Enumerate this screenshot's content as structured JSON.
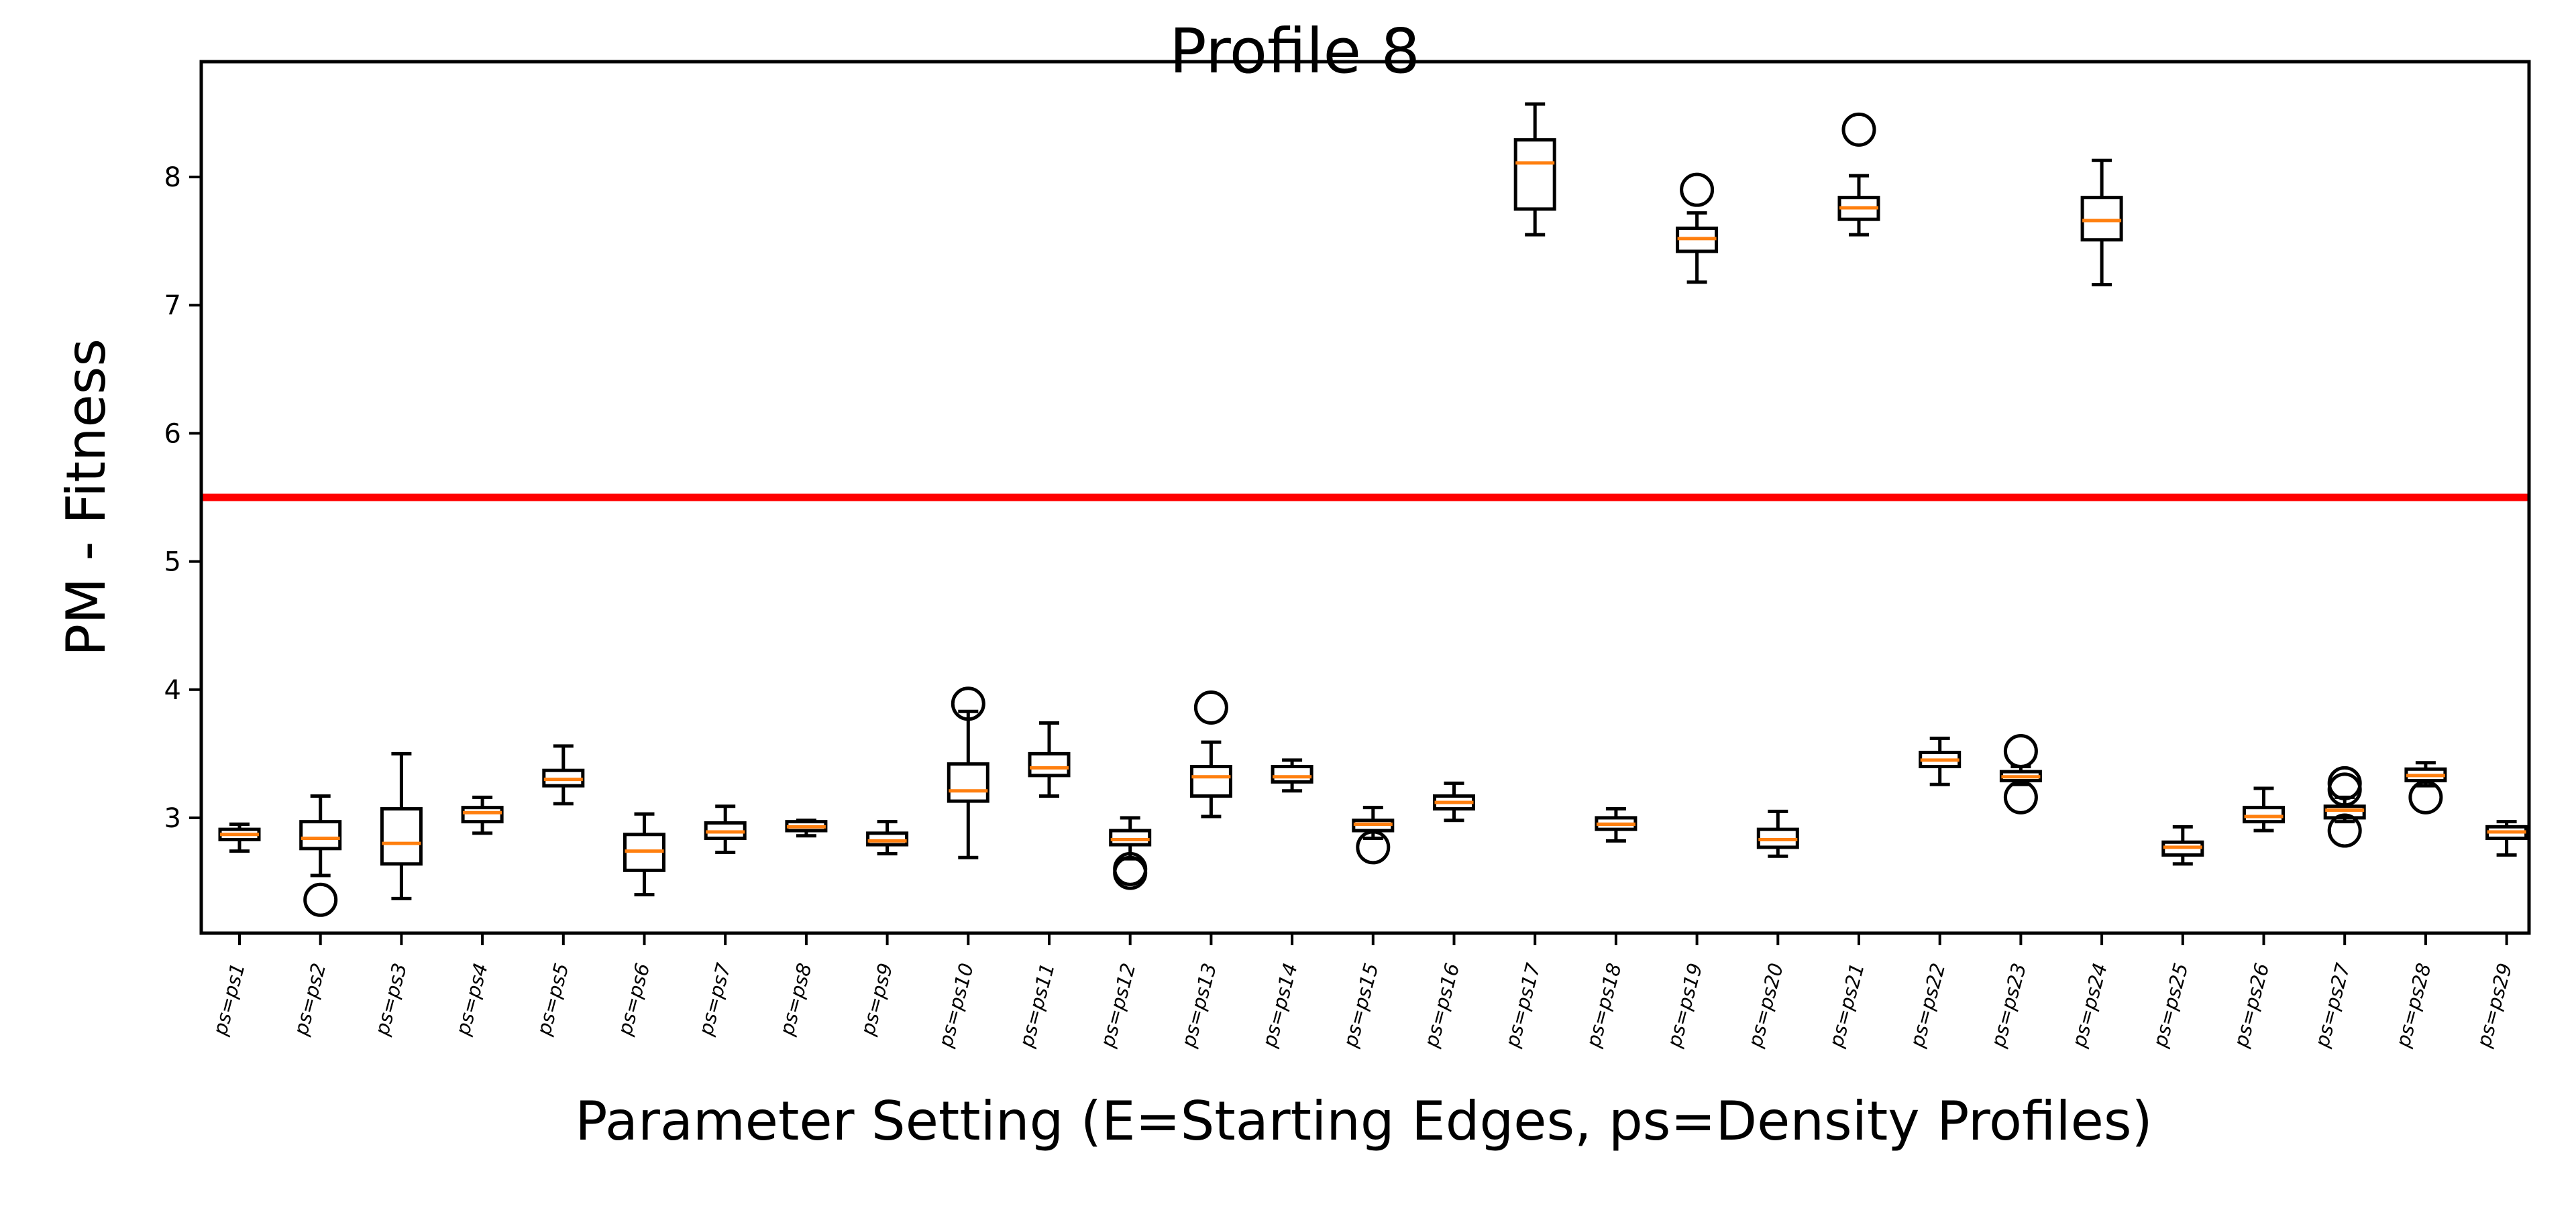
{
  "chart_data": {
    "type": "box",
    "title": "Profile 8",
    "xlabel": "Parameter Setting (E=Starting Edges, ps=Density Profiles)",
    "ylabel": "PM - Fitness",
    "ylim": [
      2.1,
      8.9
    ],
    "yticks": [
      3,
      4,
      5,
      6,
      7,
      8
    ],
    "grid": false,
    "reference_line": {
      "y": 5.5,
      "color": "#ff0000"
    },
    "colors": {
      "box": "#000000",
      "median": "#ff7f0e",
      "reference": "#ff0000"
    },
    "categories": [
      "ps=ps1",
      "ps=ps2",
      "ps=ps3",
      "ps=ps4",
      "ps=ps5",
      "ps=ps6",
      "ps=ps7",
      "ps=ps8",
      "ps=ps9",
      "ps=ps10",
      "ps=ps11",
      "ps=ps12",
      "ps=ps13",
      "ps=ps14",
      "ps=ps15",
      "ps=ps16",
      "ps=ps17",
      "ps=ps18",
      "ps=ps19",
      "ps=ps20",
      "ps=ps21",
      "ps=ps22",
      "ps=ps23",
      "ps=ps24",
      "ps=ps25",
      "ps=ps26",
      "ps=ps27",
      "ps=ps28",
      "ps=ps29"
    ],
    "boxes": [
      {
        "min": 2.74,
        "q1": 2.83,
        "median": 2.87,
        "q3": 2.91,
        "max": 2.95,
        "outliers": []
      },
      {
        "min": 2.55,
        "q1": 2.76,
        "median": 2.84,
        "q3": 2.97,
        "max": 3.17,
        "outliers": [
          2.36
        ]
      },
      {
        "min": 2.37,
        "q1": 2.64,
        "median": 2.8,
        "q3": 3.07,
        "max": 3.5,
        "outliers": []
      },
      {
        "min": 2.88,
        "q1": 2.97,
        "median": 3.04,
        "q3": 3.08,
        "max": 3.16,
        "outliers": []
      },
      {
        "min": 3.11,
        "q1": 3.25,
        "median": 3.3,
        "q3": 3.37,
        "max": 3.56,
        "outliers": []
      },
      {
        "min": 2.4,
        "q1": 2.59,
        "median": 2.74,
        "q3": 2.87,
        "max": 3.03,
        "outliers": []
      },
      {
        "min": 2.73,
        "q1": 2.84,
        "median": 2.89,
        "q3": 2.96,
        "max": 3.09,
        "outliers": []
      },
      {
        "min": 2.86,
        "q1": 2.9,
        "median": 2.93,
        "q3": 2.97,
        "max": 2.98,
        "outliers": []
      },
      {
        "min": 2.72,
        "q1": 2.79,
        "median": 2.82,
        "q3": 2.88,
        "max": 2.97,
        "outliers": []
      },
      {
        "min": 2.69,
        "q1": 3.13,
        "median": 3.21,
        "q3": 3.42,
        "max": 3.83,
        "outliers": [
          3.89
        ]
      },
      {
        "min": 3.17,
        "q1": 3.33,
        "median": 3.39,
        "q3": 3.5,
        "max": 3.74,
        "outliers": []
      },
      {
        "min": 2.68,
        "q1": 2.79,
        "median": 2.83,
        "q3": 2.9,
        "max": 3.0,
        "outliers": [
          2.6,
          2.57
        ]
      },
      {
        "min": 3.01,
        "q1": 3.17,
        "median": 3.32,
        "q3": 3.4,
        "max": 3.59,
        "outliers": [
          3.86
        ]
      },
      {
        "min": 3.21,
        "q1": 3.28,
        "median": 3.32,
        "q3": 3.4,
        "max": 3.45,
        "outliers": []
      },
      {
        "min": 2.84,
        "q1": 2.9,
        "median": 2.95,
        "q3": 2.98,
        "max": 3.08,
        "outliers": [
          2.77
        ]
      },
      {
        "min": 2.98,
        "q1": 3.07,
        "median": 3.12,
        "q3": 3.17,
        "max": 3.27,
        "outliers": []
      },
      {
        "min": 7.55,
        "q1": 7.75,
        "median": 8.11,
        "q3": 8.29,
        "max": 8.57,
        "outliers": []
      },
      {
        "min": 2.82,
        "q1": 2.91,
        "median": 2.95,
        "q3": 3.0,
        "max": 3.07,
        "outliers": []
      },
      {
        "min": 7.18,
        "q1": 7.42,
        "median": 7.52,
        "q3": 7.6,
        "max": 7.72,
        "outliers": [
          7.9
        ]
      },
      {
        "min": 2.7,
        "q1": 2.77,
        "median": 2.83,
        "q3": 2.91,
        "max": 3.05,
        "outliers": []
      },
      {
        "min": 7.55,
        "q1": 7.67,
        "median": 7.76,
        "q3": 7.84,
        "max": 8.01,
        "outliers": [
          8.37
        ]
      },
      {
        "min": 3.26,
        "q1": 3.4,
        "median": 3.45,
        "q3": 3.51,
        "max": 3.62,
        "outliers": []
      },
      {
        "min": 3.26,
        "q1": 3.29,
        "median": 3.32,
        "q3": 3.36,
        "max": 3.4,
        "outliers": [
          3.52,
          3.16
        ]
      },
      {
        "min": 7.16,
        "q1": 7.51,
        "median": 7.66,
        "q3": 7.84,
        "max": 8.13,
        "outliers": []
      },
      {
        "min": 2.64,
        "q1": 2.71,
        "median": 2.77,
        "q3": 2.81,
        "max": 2.93,
        "outliers": []
      },
      {
        "min": 2.9,
        "q1": 2.97,
        "median": 3.01,
        "q3": 3.08,
        "max": 3.23,
        "outliers": []
      },
      {
        "min": 2.97,
        "q1": 3.0,
        "median": 3.06,
        "q3": 3.09,
        "max": 3.16,
        "outliers": [
          3.27,
          3.22,
          2.9
        ]
      },
      {
        "min": 3.25,
        "q1": 3.29,
        "median": 3.33,
        "q3": 3.38,
        "max": 3.43,
        "outliers": [
          3.16
        ]
      },
      {
        "min": 2.71,
        "q1": 2.84,
        "median": 2.89,
        "q3": 2.93,
        "max": 2.97,
        "outliers": []
      }
    ]
  }
}
